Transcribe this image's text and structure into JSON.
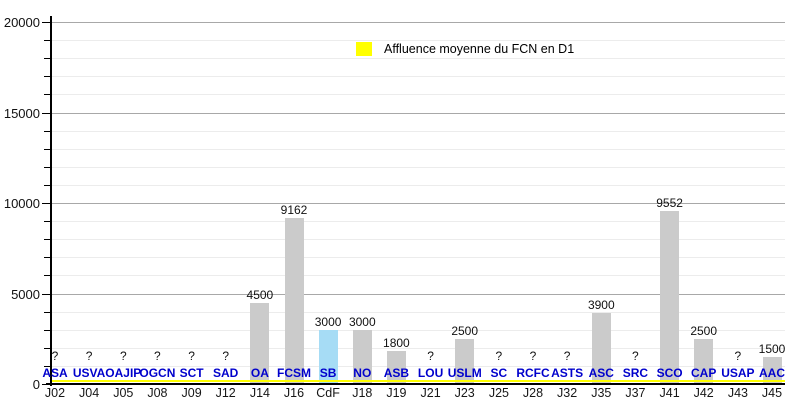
{
  "legend": {
    "label": "Affluence moyenne du FCN en D1",
    "swatch_color": "#ffff00"
  },
  "chart_data": {
    "type": "bar",
    "title": "",
    "xlabel": "",
    "ylabel": "",
    "ylim": [
      0,
      20000
    ],
    "y_major_ticks": [
      0,
      5000,
      10000,
      15000,
      20000
    ],
    "y_minor_step": 1000,
    "grid": true,
    "legend_position": "top-center",
    "legend_label": "Affluence moyenne du FCN en D1",
    "bars": [
      {
        "club": "ASA",
        "matchday": "J02",
        "value": null,
        "label": "?"
      },
      {
        "club": "USVA",
        "matchday": "J04",
        "value": null,
        "label": "?"
      },
      {
        "club": "OAJIP",
        "matchday": "J05",
        "value": null,
        "label": "?"
      },
      {
        "club": "OGCN",
        "matchday": "J08",
        "value": null,
        "label": "?"
      },
      {
        "club": "SCT",
        "matchday": "J09",
        "value": null,
        "label": "?"
      },
      {
        "club": "SAD",
        "matchday": "J12",
        "value": null,
        "label": "?"
      },
      {
        "club": "OA",
        "matchday": "J14",
        "value": 4500,
        "label": "4500"
      },
      {
        "club": "FCSM",
        "matchday": "J16",
        "value": 9162,
        "label": "9162"
      },
      {
        "club": "SB",
        "matchday": "CdF",
        "value": 3000,
        "label": "3000",
        "highlight": true
      },
      {
        "club": "NO",
        "matchday": "J18",
        "value": 3000,
        "label": "3000"
      },
      {
        "club": "ASB",
        "matchday": "J19",
        "value": 1800,
        "label": "1800"
      },
      {
        "club": "LOU",
        "matchday": "J21",
        "value": null,
        "label": "?"
      },
      {
        "club": "USLM",
        "matchday": "J23",
        "value": 2500,
        "label": "2500"
      },
      {
        "club": "SC",
        "matchday": "J25",
        "value": null,
        "label": "?"
      },
      {
        "club": "RCFC",
        "matchday": "J28",
        "value": null,
        "label": "?"
      },
      {
        "club": "ASTS",
        "matchday": "J32",
        "value": null,
        "label": "?"
      },
      {
        "club": "ASC",
        "matchday": "J35",
        "value": 3900,
        "label": "3900"
      },
      {
        "club": "SRC",
        "matchday": "J37",
        "value": null,
        "label": "?"
      },
      {
        "club": "SCO",
        "matchday": "J41",
        "value": 9552,
        "label": "9552"
      },
      {
        "club": "CAP",
        "matchday": "J42",
        "value": 2500,
        "label": "2500"
      },
      {
        "club": "USAP",
        "matchday": "J43",
        "value": null,
        "label": "?"
      },
      {
        "club": "AAC",
        "matchday": "J45",
        "value": 1500,
        "label": "1500"
      }
    ]
  },
  "colors": {
    "bar_default": "#cbcbcb",
    "bar_highlight": "#a6dcf5",
    "club_label": "#0000cc",
    "grid_major": "#a8a8a8",
    "grid_minor": "#ececec",
    "axis": "#000000",
    "baseline": "#ffff00",
    "value_label": "#111111",
    "axis_label": "#111111",
    "matchday_label": "#161616"
  }
}
